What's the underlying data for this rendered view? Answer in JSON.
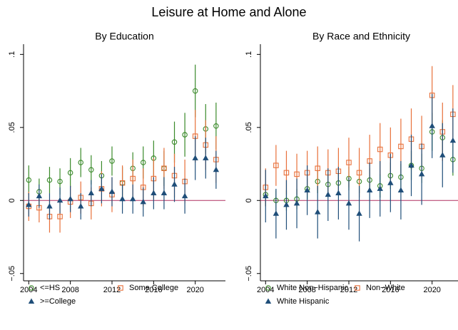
{
  "title": "Leisure at Home and Alone",
  "chart_data": [
    {
      "type": "scatter",
      "title": "By Education",
      "x": [
        2004,
        2005,
        2006,
        2007,
        2008,
        2009,
        2010,
        2011,
        2012,
        2013,
        2014,
        2015,
        2016,
        2017,
        2018,
        2019,
        2020,
        2021,
        2022
      ],
      "xlim": [
        2003.5,
        2022.9
      ],
      "xticks": [
        2004,
        2008,
        2012,
        2016,
        2020
      ],
      "ylim": [
        -0.055,
        0.107
      ],
      "yticks": [
        {
          "value": -0.05,
          "label": "−.05"
        },
        0,
        {
          "value": 0.05,
          "label": ".05"
        },
        {
          "value": 0.1,
          "label": ".1"
        }
      ],
      "hline": 0,
      "hline_color": "#b03060",
      "series": [
        {
          "name": "<=HS",
          "color": "#3a8a2a",
          "marker": "circle",
          "values": [
            0.014,
            0.006,
            0.014,
            0.013,
            0.019,
            0.026,
            0.021,
            0.017,
            0.027,
            0.012,
            0.022,
            0.026,
            0.029,
            0.022,
            0.04,
            0.045,
            0.075,
            0.049,
            0.051
          ],
          "errors": [
            0.01,
            0.009,
            0.009,
            0.009,
            0.01,
            0.01,
            0.01,
            0.01,
            0.01,
            0.011,
            0.011,
            0.011,
            0.012,
            0.012,
            0.014,
            0.015,
            0.018,
            0.017,
            0.016
          ]
        },
        {
          "name": "Some College",
          "color": "#e8703a",
          "marker": "square",
          "values": [
            -0.004,
            -0.005,
            -0.011,
            -0.011,
            -0.001,
            0.002,
            -0.002,
            0.008,
            0.004,
            0.012,
            0.015,
            0.009,
            0.015,
            0.022,
            0.017,
            0.013,
            0.044,
            0.038,
            0.028
          ],
          "errors": [
            0.01,
            0.01,
            0.011,
            0.011,
            0.011,
            0.011,
            0.011,
            0.012,
            0.012,
            0.012,
            0.013,
            0.013,
            0.014,
            0.014,
            0.015,
            0.015,
            0.018,
            0.017,
            0.016
          ]
        },
        {
          "name": ">=College",
          "color": "#1f4e79",
          "marker": "triangle",
          "values": [
            -0.003,
            0.003,
            -0.004,
            0,
            0.001,
            -0.004,
            0.005,
            0.008,
            0.006,
            0.001,
            0.001,
            -0.001,
            0.005,
            0.005,
            0.011,
            0.003,
            0.029,
            0.029,
            0.021
          ],
          "errors": [
            0.008,
            0.008,
            0.009,
            0.009,
            0.009,
            0.009,
            0.009,
            0.01,
            0.01,
            0.01,
            0.01,
            0.01,
            0.011,
            0.011,
            0.012,
            0.012,
            0.015,
            0.014,
            0.013
          ]
        }
      ]
    },
    {
      "type": "scatter",
      "title": "By Race and Ethnicity",
      "x": [
        2004,
        2005,
        2006,
        2007,
        2008,
        2009,
        2010,
        2011,
        2012,
        2013,
        2014,
        2015,
        2016,
        2017,
        2018,
        2019,
        2020,
        2021,
        2022
      ],
      "xlim": [
        2003.5,
        2022.9
      ],
      "xticks": [
        2004,
        2008,
        2012,
        2016,
        2020
      ],
      "ylim": [
        -0.055,
        0.107
      ],
      "yticks": [
        {
          "value": -0.05,
          "label": "−.05"
        },
        0,
        {
          "value": 0.05,
          "label": ".05"
        },
        {
          "value": 0.1,
          "label": ".1"
        }
      ],
      "hline": 0,
      "hline_color": "#b03060",
      "series": [
        {
          "name": "White Non−Hispanic",
          "color": "#3a8a2a",
          "marker": "circle",
          "values": [
            0.004,
            0,
            0,
            0.001,
            0.008,
            0.013,
            0.011,
            0.012,
            0.015,
            0.013,
            0.014,
            0.01,
            0.017,
            0.016,
            0.024,
            0.022,
            0.047,
            0.043,
            0.028
          ],
          "errors": [
            0.008,
            0.007,
            0.007,
            0.007,
            0.007,
            0.008,
            0.008,
            0.008,
            0.008,
            0.008,
            0.008,
            0.008,
            0.009,
            0.009,
            0.01,
            0.01,
            0.013,
            0.012,
            0.011
          ]
        },
        {
          "name": "Non−White",
          "color": "#e8703a",
          "marker": "square",
          "values": [
            0.009,
            0.024,
            0.019,
            0.018,
            0.019,
            0.022,
            0.019,
            0.02,
            0.026,
            0.019,
            0.027,
            0.035,
            0.031,
            0.037,
            0.042,
            0.037,
            0.072,
            0.047,
            0.059
          ],
          "errors": [
            0.013,
            0.014,
            0.015,
            0.014,
            0.015,
            0.015,
            0.016,
            0.016,
            0.017,
            0.017,
            0.018,
            0.018,
            0.019,
            0.019,
            0.021,
            0.021,
            0.02,
            0.02,
            0.02
          ]
        },
        {
          "name": "White Hispanic",
          "color": "#1f4e79",
          "marker": "triangle",
          "values": [
            0.003,
            -0.009,
            -0.003,
            -0.002,
            0.007,
            -0.008,
            0.004,
            0.005,
            -0.002,
            -0.009,
            0.007,
            0.008,
            0.012,
            0.007,
            0.024,
            0.018,
            0.051,
            0.031,
            0.041
          ],
          "errors": [
            0.018,
            0.017,
            0.017,
            0.017,
            0.017,
            0.018,
            0.018,
            0.018,
            0.018,
            0.019,
            0.019,
            0.019,
            0.02,
            0.02,
            0.021,
            0.021,
            0.022,
            0.022,
            0.022
          ]
        }
      ]
    }
  ]
}
